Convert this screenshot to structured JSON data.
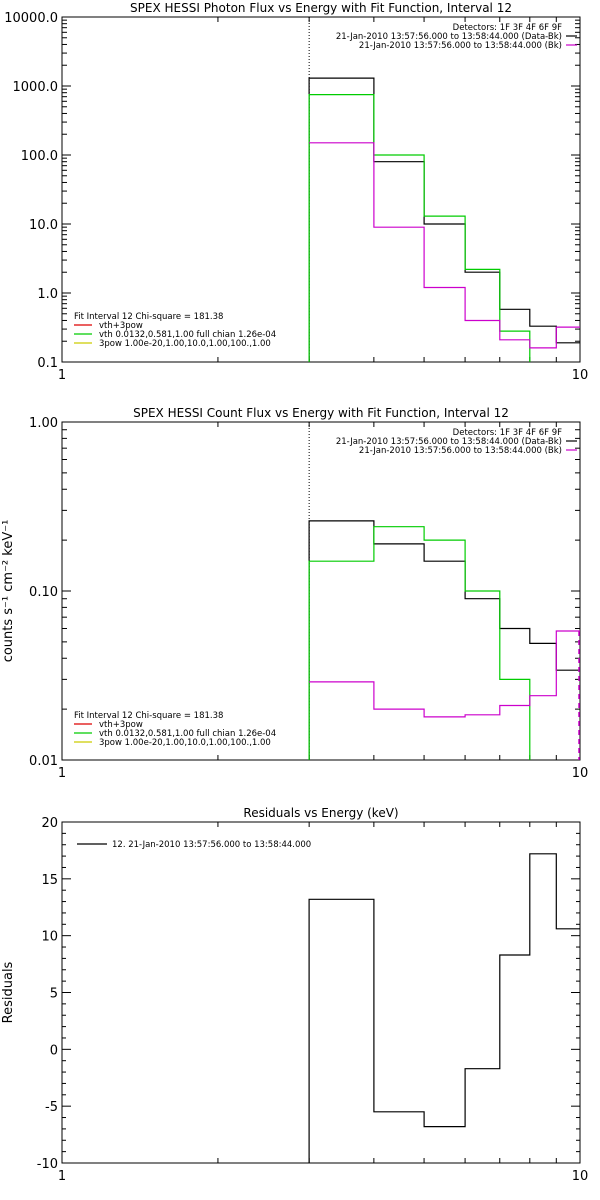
{
  "chart_data": [
    {
      "type": "line",
      "title": "SPEX HESSI Photon Flux vs Energy with Fit Function, Interval 12",
      "xlabel": "",
      "ylabel": "",
      "xscale": "log",
      "yscale": "log",
      "xlim": [
        1,
        10
      ],
      "ylim": [
        0.1,
        10000
      ],
      "x_ticks": [
        "1",
        "10"
      ],
      "y_ticks": [
        "0.1",
        "1.0",
        "10.0",
        "100.0",
        "1000.0",
        "10000.0"
      ],
      "marker_line_x": 3,
      "header_lines": [
        {
          "text": "Detectors: 1F 3F 4F 6F 9F",
          "color": ""
        },
        {
          "text": "21-Jan-2010 13:57:56.000 to 13:58:44.000 (Data-Bk)",
          "color": "#000000"
        },
        {
          "text": "21-Jan-2010 13:57:56.000 to 13:58:44.000 (Bk)",
          "color": "#cc00cc"
        }
      ],
      "legend_title": "Fit Interval 12    Chi-square = 181.38",
      "legend": [
        {
          "label": "vth+3pow",
          "color": "#dd0000"
        },
        {
          "label": "vth 0.0132,0.581,1.00  full chian 1.26e-04",
          "color": "#00cc00"
        },
        {
          "label": "3pow 1.00e-20,1.00,10.0,1.00,100.,1.00",
          "color": "#cccc00"
        }
      ],
      "series": [
        {
          "color": "#000000",
          "edges": [
            3,
            4,
            5,
            6,
            7,
            8,
            9,
            10
          ],
          "values": [
            1300,
            80,
            10,
            2.0,
            0.58,
            0.33,
            0.19
          ],
          "drop_start": true
        },
        {
          "color": "#00cc00",
          "edges": [
            3,
            4,
            5,
            6,
            7,
            8
          ],
          "values": [
            750,
            100,
            13,
            2.2,
            0.28
          ],
          "drop_start": true,
          "drop_end": true
        },
        {
          "color": "#cc00cc",
          "edges": [
            3,
            4,
            5,
            6,
            7,
            8,
            9,
            10
          ],
          "values": [
            150,
            9.0,
            1.2,
            0.4,
            0.21,
            0.16,
            0.32
          ]
        }
      ]
    },
    {
      "type": "line",
      "title": "SPEX HESSI Count Flux vs Energy with Fit Function, Interval 12",
      "xlabel": "",
      "ylabel": "counts s⁻¹ cm⁻² keV⁻¹",
      "xscale": "log",
      "yscale": "log",
      "xlim": [
        1,
        10
      ],
      "ylim": [
        0.01,
        1.0
      ],
      "x_ticks": [
        "1",
        "10"
      ],
      "y_ticks": [
        "0.01",
        "0.10",
        "1.00"
      ],
      "marker_line_x": 3,
      "header_lines": [
        {
          "text": "Detectors: 1F 3F 4F 6F 9F",
          "color": ""
        },
        {
          "text": "21-Jan-2010 13:57:56.000 to 13:58:44.000 (Data-Bk)",
          "color": "#000000"
        },
        {
          "text": "21-Jan-2010 13:57:56.000 to 13:58:44.000 (Bk)",
          "color": "#cc00cc"
        }
      ],
      "legend_title": "Fit Interval 12    Chi-square = 181.38",
      "legend": [
        {
          "label": "vth+3pow",
          "color": "#dd0000"
        },
        {
          "label": "vth 0.0132,0.581,1.00  full chian 1.26e-04",
          "color": "#00cc00"
        },
        {
          "label": "3pow 1.00e-20,1.00,10.0,1.00,100.,1.00",
          "color": "#cccc00"
        }
      ],
      "series": [
        {
          "color": "#000000",
          "edges": [
            3,
            4,
            5,
            6,
            7,
            8,
            9,
            10
          ],
          "values": [
            0.26,
            0.19,
            0.15,
            0.09,
            0.06,
            0.049,
            0.034
          ],
          "drop_start": true
        },
        {
          "color": "#00cc00",
          "edges": [
            3,
            4,
            5,
            6,
            7,
            8
          ],
          "values": [
            0.15,
            0.24,
            0.2,
            0.1,
            0.03
          ],
          "drop_start": true,
          "drop_end": true
        },
        {
          "color": "#cc00cc",
          "edges": [
            3,
            4,
            5,
            6,
            7,
            8,
            9,
            10
          ],
          "values": [
            0.029,
            0.02,
            0.018,
            0.0185,
            0.021,
            0.024,
            0.058
          ],
          "drop_end": true,
          "dash_end": true
        }
      ]
    },
    {
      "type": "line",
      "title": "Residuals vs Energy (keV)",
      "xlabel": "",
      "ylabel": "Residuals",
      "xscale": "log",
      "yscale": "linear",
      "xlim": [
        1,
        10
      ],
      "ylim": [
        -10,
        20
      ],
      "x_ticks": [
        "1",
        "10"
      ],
      "y_ticks": [
        "-10",
        "-5",
        "0",
        "5",
        "10",
        "15",
        "20"
      ],
      "legend": [
        {
          "label": "12. 21-Jan-2010 13:57:56.000 to 13:58:44.000",
          "color": "#000000"
        }
      ],
      "series": [
        {
          "color": "#000000",
          "edges": [
            3,
            4,
            5,
            6,
            7,
            8,
            9,
            10
          ],
          "values": [
            13.2,
            -5.5,
            -6.8,
            -1.7,
            8.3,
            17.2,
            10.6
          ],
          "drop_start": true
        }
      ]
    }
  ]
}
